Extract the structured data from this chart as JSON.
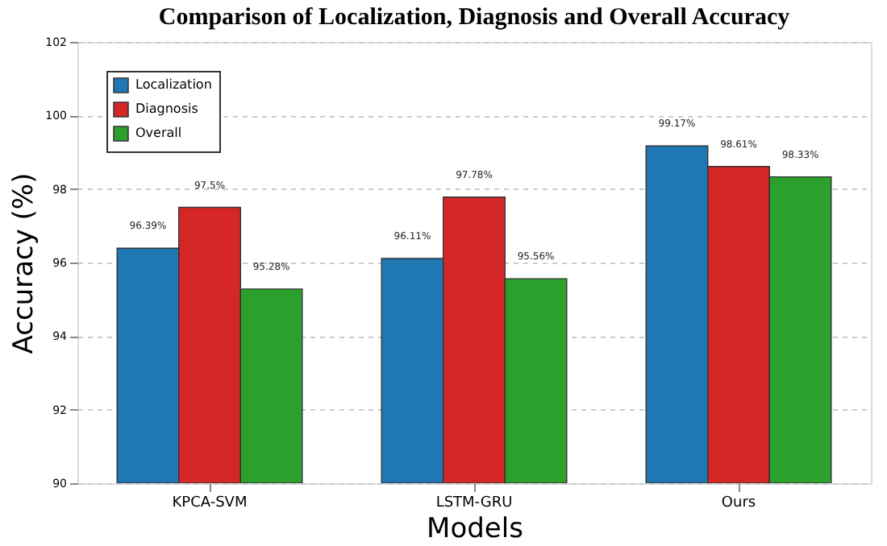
{
  "chart_data": {
    "type": "bar",
    "title": "Comparison of Localization, Diagnosis and Overall Accuracy",
    "xlabel": "Models",
    "ylabel": "Accuracy (%)",
    "categories": [
      "KPCA-SVM",
      "LSTM-GRU",
      "Ours"
    ],
    "series": [
      {
        "name": "Localization",
        "color": "#1f77b4",
        "values": [
          96.39,
          96.11,
          99.17
        ],
        "value_labels": [
          "96.39%",
          "96.11%",
          "99.17%"
        ]
      },
      {
        "name": "Diagnosis",
        "color": "#d62728",
        "values": [
          97.5,
          97.78,
          98.61
        ],
        "value_labels": [
          "97.5%",
          "97.78%",
          "98.61%"
        ]
      },
      {
        "name": "Overall",
        "color": "#2ca02c",
        "values": [
          95.28,
          95.56,
          98.33
        ],
        "value_labels": [
          "95.28%",
          "95.56%",
          "98.33%"
        ]
      }
    ],
    "ylim": [
      90,
      102
    ],
    "yticks": [
      90,
      92,
      94,
      96,
      98,
      100,
      102
    ],
    "grid": "y",
    "legend": "top left"
  }
}
